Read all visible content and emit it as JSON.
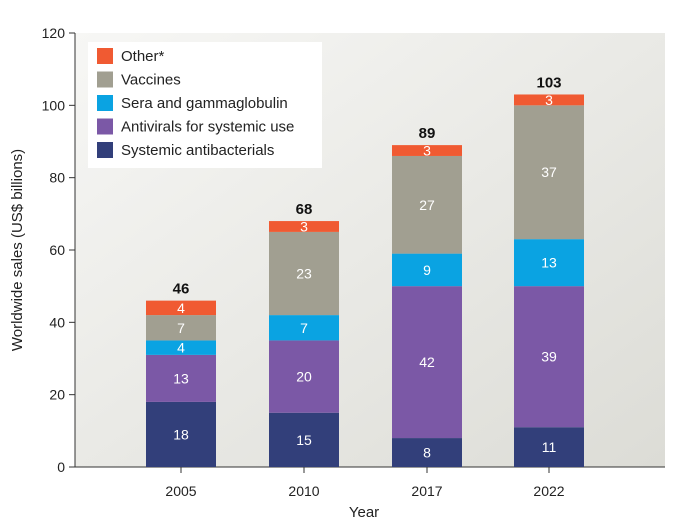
{
  "chart_data": {
    "type": "bar",
    "stacked": true,
    "categories": [
      "2005",
      "2010",
      "2017",
      "2022"
    ],
    "xlabel": "Year",
    "ylabel": "Worldwide sales (US$ billions)",
    "ylim": [
      0,
      120
    ],
    "yticks": [
      0,
      20,
      40,
      60,
      80,
      100,
      120
    ],
    "legend_position": "top-left",
    "series": [
      {
        "name": "Systemic antibacterials",
        "color": "#323f7a",
        "values": [
          18,
          15,
          8,
          11
        ],
        "labels": [
          "18",
          "15",
          "8",
          "11"
        ]
      },
      {
        "name": "Antivirals for systemic use",
        "color": "#7b58a6",
        "values": [
          13,
          20,
          42,
          39
        ],
        "labels": [
          "13",
          "20",
          "42",
          "39"
        ]
      },
      {
        "name": "Sera and gammaglobulin",
        "color": "#0aa3e2",
        "values": [
          4,
          7,
          9,
          13
        ],
        "labels": [
          "4",
          "7",
          "9",
          "13"
        ]
      },
      {
        "name": "Vaccines",
        "color": "#a19f91",
        "values": [
          7,
          23,
          27,
          37
        ],
        "labels": [
          "7",
          "23",
          "27",
          "37"
        ]
      },
      {
        "name": "Other*",
        "color": "#f05a32",
        "values": [
          4,
          3,
          3,
          3
        ],
        "labels": [
          "4",
          "3",
          "3",
          "3"
        ]
      }
    ],
    "totals": [
      "46",
      "68",
      "89",
      "103"
    ]
  }
}
